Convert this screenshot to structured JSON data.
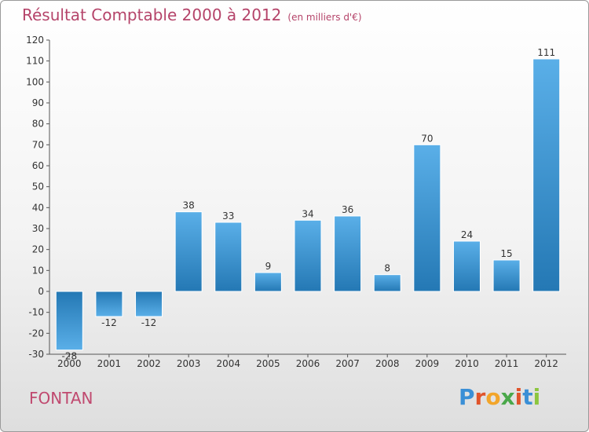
{
  "title": "Résultat Comptable 2000 à 2012",
  "subtitle": "(en milliers d'€)",
  "commune": "FONTAN",
  "logo": {
    "letters": [
      "P",
      "r",
      "o",
      "x",
      "i",
      "t",
      "i"
    ],
    "colors": [
      "#3a8fd6",
      "#e0542b",
      "#f2a52a",
      "#4aa84a",
      "#e0542b",
      "#3a8fd6",
      "#8cc63f"
    ]
  },
  "chart_data": {
    "type": "bar",
    "categories": [
      "2000",
      "2001",
      "2002",
      "2003",
      "2004",
      "2005",
      "2006",
      "2007",
      "2008",
      "2009",
      "2010",
      "2011",
      "2012"
    ],
    "values": [
      -28,
      -12,
      -12,
      38,
      33,
      9,
      34,
      36,
      8,
      70,
      24,
      15,
      111
    ],
    "labels": [
      "-28",
      "-12",
      "-12",
      "38",
      "33",
      "9",
      "34",
      "36",
      "8",
      "70",
      "24",
      "15",
      "111"
    ],
    "title": "Résultat Comptable 2000 à 2012",
    "ylabel": "en milliers d'€",
    "ylim": [
      -30,
      120
    ],
    "yticks": [
      -30,
      -20,
      -10,
      0,
      10,
      20,
      30,
      40,
      50,
      60,
      70,
      80,
      90,
      100,
      110,
      120
    ],
    "grid": false,
    "colors": {
      "bar_light": "#5aafe8",
      "bar_dark": "#2478b4",
      "axis": "#555555"
    }
  }
}
